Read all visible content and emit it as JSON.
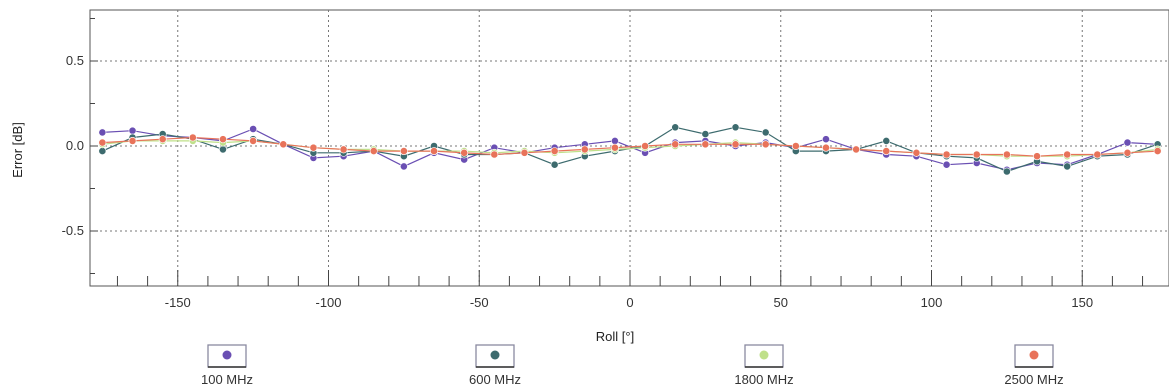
{
  "chart_data": {
    "type": "line",
    "xlabel": "Roll [°]",
    "ylabel": "Error [dB]",
    "xlim": [
      -180,
      180
    ],
    "ylim": [
      -0.75,
      0.75
    ],
    "xticks": [
      -150,
      -100,
      -50,
      0,
      50,
      100,
      150
    ],
    "xtick_labels": [
      "-150",
      "-100",
      "-50",
      "0",
      "50",
      "100",
      "150"
    ],
    "yticks": [
      -0.5,
      0.0,
      0.5
    ],
    "ytick_labels": [
      "-0.5",
      "0.0",
      "0.5"
    ],
    "grid": true,
    "legend_position": "bottom",
    "x": [
      -175,
      -165,
      -155,
      -145,
      -135,
      -125,
      -115,
      -105,
      -95,
      -85,
      -75,
      -65,
      -55,
      -45,
      -35,
      -25,
      -15,
      -5,
      5,
      15,
      25,
      35,
      45,
      55,
      65,
      75,
      85,
      95,
      105,
      115,
      125,
      135,
      145,
      155,
      165,
      175
    ],
    "series": [
      {
        "name": "100 MHz",
        "color": "#6a4fb3",
        "values": [
          0.08,
          0.09,
          0.06,
          0.05,
          0.03,
          0.1,
          0.01,
          -0.07,
          -0.06,
          -0.03,
          -0.12,
          -0.04,
          -0.08,
          -0.01,
          -0.04,
          -0.01,
          0.01,
          0.03,
          -0.04,
          0.02,
          0.03,
          0.0,
          0.02,
          -0.01,
          0.04,
          -0.02,
          -0.05,
          -0.06,
          -0.11,
          -0.1,
          -0.14,
          -0.1,
          -0.11,
          -0.05,
          0.02,
          0.01
        ]
      },
      {
        "name": "600 MHz",
        "color": "#3d6b6e",
        "values": [
          -0.03,
          0.05,
          0.07,
          0.04,
          -0.02,
          0.04,
          0.01,
          -0.04,
          -0.04,
          -0.03,
          -0.06,
          0.0,
          -0.05,
          -0.05,
          -0.04,
          -0.11,
          -0.06,
          -0.03,
          0.0,
          0.11,
          0.07,
          0.11,
          0.08,
          -0.03,
          -0.03,
          -0.02,
          0.03,
          -0.04,
          -0.06,
          -0.07,
          -0.15,
          -0.09,
          -0.12,
          -0.06,
          -0.05,
          0.01
        ]
      },
      {
        "name": "1800 MHz",
        "color": "#bfe08a",
        "values": [
          0.01,
          0.03,
          0.03,
          0.03,
          0.02,
          0.03,
          0.01,
          -0.01,
          -0.02,
          -0.02,
          -0.03,
          -0.03,
          -0.03,
          -0.04,
          -0.03,
          -0.04,
          -0.03,
          -0.02,
          -0.01,
          0.0,
          0.01,
          0.02,
          0.01,
          0.0,
          -0.01,
          -0.02,
          -0.03,
          -0.04,
          -0.05,
          -0.05,
          -0.06,
          -0.06,
          -0.06,
          -0.05,
          -0.04,
          -0.02
        ]
      },
      {
        "name": "2500 MHz",
        "color": "#e8735a",
        "values": [
          0.02,
          0.03,
          0.04,
          0.05,
          0.04,
          0.03,
          0.01,
          -0.01,
          -0.02,
          -0.03,
          -0.03,
          -0.03,
          -0.04,
          -0.05,
          -0.04,
          -0.03,
          -0.02,
          -0.01,
          0.0,
          0.01,
          0.01,
          0.01,
          0.01,
          0.0,
          -0.01,
          -0.02,
          -0.03,
          -0.04,
          -0.05,
          -0.05,
          -0.05,
          -0.06,
          -0.05,
          -0.05,
          -0.04,
          -0.03
        ]
      }
    ]
  }
}
